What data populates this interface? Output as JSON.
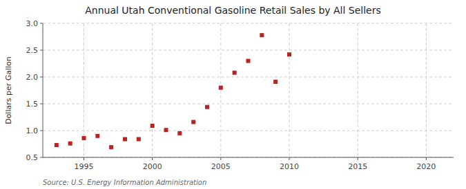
{
  "chart_data": {
    "type": "scatter",
    "title": "Annual Utah Conventional Gasoline Retail Sales by All Sellers",
    "y_label": "Dollars per Gallon",
    "annotations": [
      "Source: U.S. Energy Information Administration"
    ],
    "x": [
      1993,
      1994,
      1995,
      1996,
      1997,
      1998,
      1999,
      2000,
      2001,
      2002,
      2003,
      2004,
      2005,
      2006,
      2007,
      2008,
      2009,
      2010
    ],
    "values": [
      0.73,
      0.76,
      0.86,
      0.9,
      0.69,
      0.84,
      0.84,
      1.09,
      1.01,
      0.95,
      1.16,
      1.44,
      1.8,
      2.08,
      2.3,
      2.78,
      1.91,
      2.42
    ],
    "color": "#bb2222",
    "marker": "square",
    "xlim": [
      1992,
      2022
    ],
    "ylim": [
      0.5,
      3.0
    ],
    "xticks": [
      1995,
      2000,
      2005,
      2010,
      2015,
      2020
    ],
    "yticks": [
      0.5,
      {
        "value": 1.0,
        "label": "1.0"
      },
      1.5,
      {
        "value": 2.0,
        "label": "2.0"
      },
      2.5,
      {
        "value": 3.0,
        "label": "3.0"
      }
    ],
    "grid": true
  }
}
